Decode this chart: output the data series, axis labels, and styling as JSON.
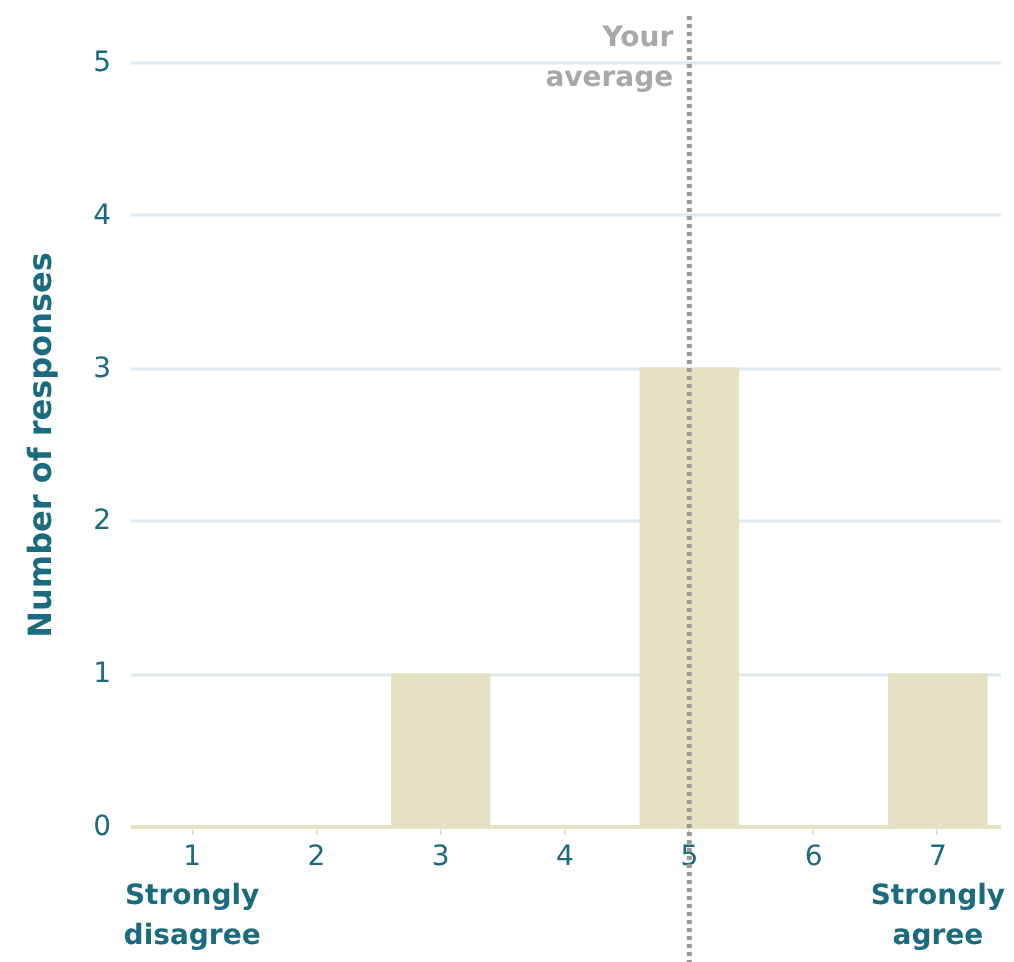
{
  "chart_data": {
    "type": "bar",
    "categories": [
      "1",
      "2",
      "3",
      "4",
      "5",
      "6",
      "7"
    ],
    "values": [
      0,
      0,
      1,
      0,
      3,
      0,
      1
    ],
    "color": "#e5e1c3",
    "ylabel": "Number of responses",
    "ylim": [
      0,
      5
    ],
    "yticks": [
      0,
      1,
      2,
      3,
      4,
      5
    ],
    "grid": "y",
    "ref_lines": [
      {
        "axis": "x",
        "value": "5",
        "label": "Your average",
        "color": "#9a9a9a",
        "line_style": "dotted"
      }
    ],
    "annotations": [
      "Strongly disagree",
      "Strongly agree"
    ]
  }
}
